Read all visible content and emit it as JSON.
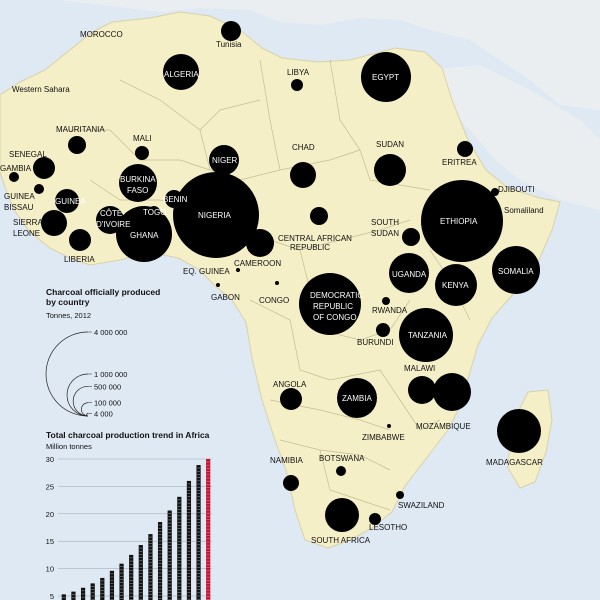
{
  "colors": {
    "sea": "#dfe9f4",
    "land": "#f5efc8",
    "border": "#b9b9b9",
    "bubble": "#000000",
    "bar_black": "#111111",
    "bar_red": "#c8102e"
  },
  "map_labels": [
    {
      "text": "MOROCCO",
      "color": "dark"
    },
    {
      "text": "Tunisia",
      "color": "dark"
    },
    {
      "text": "ALGERIA",
      "color": "light"
    },
    {
      "text": "LIBYA",
      "color": "dark"
    },
    {
      "text": "EGYPT",
      "color": "light"
    },
    {
      "text": "Western Sahara",
      "color": "dark"
    },
    {
      "text": "MAURITANIA",
      "color": "dark"
    },
    {
      "text": "MALI",
      "color": "dark"
    },
    {
      "text": "SENEGAL",
      "color": "dark"
    },
    {
      "text": "GAMBIA",
      "color": "dark"
    },
    {
      "text": "GUINEA",
      "color": "dark"
    },
    {
      "text": "BISSAU",
      "color": "dark"
    },
    {
      "text": "GUINEA",
      "color": "light"
    },
    {
      "text": "SIERRA",
      "color": "dark"
    },
    {
      "text": "LEONE",
      "color": "dark"
    },
    {
      "text": "LIBERIA",
      "color": "dark"
    },
    {
      "text": "BURKINA",
      "color": "light"
    },
    {
      "text": "FASO",
      "color": "light"
    },
    {
      "text": "CÔTE",
      "color": "light"
    },
    {
      "text": "D'IVOIRE",
      "color": "light"
    },
    {
      "text": "GHANA",
      "color": "light"
    },
    {
      "text": "TOGO",
      "color": "light"
    },
    {
      "text": "BENIN",
      "color": "light"
    },
    {
      "text": "NIGER",
      "color": "light"
    },
    {
      "text": "NIGERIA",
      "color": "light"
    },
    {
      "text": "CHAD",
      "color": "dark"
    },
    {
      "text": "SUDAN",
      "color": "dark"
    },
    {
      "text": "ERITREA",
      "color": "dark"
    },
    {
      "text": "DJIBOUTI",
      "color": "dark"
    },
    {
      "text": "Somaliland",
      "color": "dark"
    },
    {
      "text": "ETHIOPIA",
      "color": "light"
    },
    {
      "text": "SOUTH",
      "color": "dark"
    },
    {
      "text": "SUDAN",
      "color": "dark"
    },
    {
      "text": "CENTRAL AFRICAN",
      "color": "dark"
    },
    {
      "text": "REPUBLIC",
      "color": "dark"
    },
    {
      "text": "CAMEROON",
      "color": "dark"
    },
    {
      "text": "EQ. GUINEA",
      "color": "dark"
    },
    {
      "text": "GABON",
      "color": "dark"
    },
    {
      "text": "CONGO",
      "color": "dark"
    },
    {
      "text": "DEMOCRATIC",
      "color": "light"
    },
    {
      "text": "REPUBLIC",
      "color": "light"
    },
    {
      "text": "OF CONGO",
      "color": "light"
    },
    {
      "text": "UGANDA",
      "color": "light"
    },
    {
      "text": "KENYA",
      "color": "light"
    },
    {
      "text": "SOMALIA",
      "color": "light"
    },
    {
      "text": "RWANDA",
      "color": "dark"
    },
    {
      "text": "BURUNDI",
      "color": "dark"
    },
    {
      "text": "TANZANIA",
      "color": "light"
    },
    {
      "text": "MALAWI",
      "color": "dark"
    },
    {
      "text": "ANGOLA",
      "color": "dark"
    },
    {
      "text": "ZAMBIA",
      "color": "light"
    },
    {
      "text": "MOZAMBIQUE",
      "color": "dark"
    },
    {
      "text": "ZIMBABWE",
      "color": "dark"
    },
    {
      "text": "MADAGASCAR",
      "color": "dark"
    },
    {
      "text": "NAMIBIA",
      "color": "dark"
    },
    {
      "text": "BOTSWANA",
      "color": "dark"
    },
    {
      "text": "SWAZILAND",
      "color": "dark"
    },
    {
      "text": "LESOTHO",
      "color": "dark"
    },
    {
      "text": "SOUTH AFRICA",
      "color": "dark"
    }
  ],
  "legend": {
    "title_line1": "Charcoal officially produced",
    "title_line2": "by country",
    "subtitle": "Tonnes, 2012",
    "sizes": [
      {
        "label": "4 000 000",
        "value": 4000000
      },
      {
        "label": "1 000 000",
        "value": 1000000
      },
      {
        "label": "500 000",
        "value": 500000
      },
      {
        "label": "100 000",
        "value": 100000
      },
      {
        "label": "4 000",
        "value": 4000
      }
    ]
  },
  "chart_data": {
    "type": "bar",
    "title": "Total charcoal production trend in Africa",
    "subtitle": "Million tonnes",
    "yticks": [
      5,
      10,
      15,
      20,
      25,
      30
    ],
    "ylim": [
      5,
      30
    ],
    "values": [
      5.3,
      5.8,
      6.5,
      7.3,
      8.3,
      9.6,
      10.9,
      12.5,
      14.3,
      16.3,
      18.5,
      20.6,
      23.1,
      26.0,
      28.9,
      30.0
    ],
    "highlight_last": true
  }
}
